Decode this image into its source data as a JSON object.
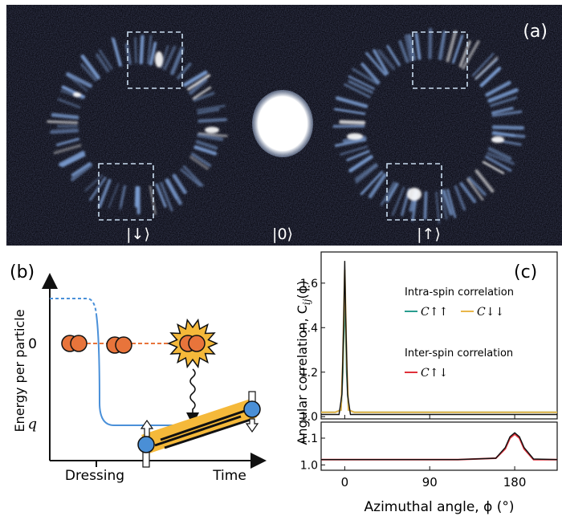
{
  "panel_a": {
    "tag": "(a)",
    "ket_down": "|↓⟩",
    "ket_zero": "|0⟩",
    "ket_up": "|↑⟩"
  },
  "panel_b": {
    "tag": "(b)",
    "ylabel": "Energy per particle",
    "y_tick_zero": "0",
    "y_tick_q": "q",
    "x_tick_dressing": "Dressing",
    "x_tick_time": "Time",
    "colors": {
      "curve": "#4a90d9",
      "particle": "#e8743b",
      "tube": "#f5b93a",
      "atom_blue": "#4a8fd6"
    }
  },
  "panel_c": {
    "tag": "(c)",
    "ylabel": "Angular correlation, C",
    "ylabel_sub": "ij",
    "ylabel_tail": "(ϕ)",
    "xlabel": "Azimuthal angle, ϕ (°)",
    "legend_intra_title": "Intra-spin correlation",
    "legend_inter_title": "Inter-spin correlation",
    "legend_uu": "C↑↑",
    "legend_dd": "C↓↓",
    "legend_ud": "C↑↓",
    "colors": {
      "uu": "#2a9d8f",
      "dd": "#e9b64a",
      "ud": "#e0303a",
      "fit": "#111111"
    }
  },
  "chart_data": [
    {
      "type": "line",
      "title": "",
      "xlabel": "Azimuthal angle, ϕ (°)",
      "ylabel": "Angular correlation, C_ij(ϕ)",
      "xlim": [
        -25,
        225
      ],
      "ylim": [
        0.99,
        1.74
      ],
      "yticks": [
        1.0,
        1.2,
        1.4,
        1.6
      ],
      "xticks": [
        0,
        90,
        180
      ],
      "series": [
        {
          "name": "C↑↑",
          "x": [
            -25,
            -10,
            -4,
            -2,
            0,
            2,
            4,
            10,
            60,
            120,
            180,
            225
          ],
          "y": [
            1.02,
            1.02,
            1.03,
            1.2,
            1.56,
            1.2,
            1.03,
            1.02,
            1.02,
            1.02,
            1.02,
            1.02
          ]
        },
        {
          "name": "C↓↓",
          "x": [
            -25,
            -10,
            -4,
            -2,
            0,
            2,
            4,
            10,
            60,
            120,
            180,
            225
          ],
          "y": [
            1.02,
            1.02,
            1.03,
            1.25,
            1.66,
            1.25,
            1.03,
            1.02,
            1.02,
            1.02,
            1.02,
            1.02
          ]
        },
        {
          "name": "fit",
          "x": [
            -25,
            -6,
            -3,
            -1,
            0,
            1,
            3,
            6,
            225
          ],
          "y": [
            1.01,
            1.01,
            1.1,
            1.45,
            1.7,
            1.45,
            1.1,
            1.01,
            1.01
          ]
        }
      ]
    },
    {
      "type": "line",
      "title": "",
      "xlabel": "Azimuthal angle, ϕ (°)",
      "ylabel": "",
      "xlim": [
        -25,
        225
      ],
      "ylim": [
        0.98,
        1.16
      ],
      "yticks": [
        1.0,
        1.1
      ],
      "xticks": [
        0,
        90,
        180
      ],
      "series": [
        {
          "name": "C↑↓",
          "x": [
            -25,
            0,
            60,
            120,
            160,
            170,
            175,
            180,
            185,
            190,
            200,
            225
          ],
          "y": [
            1.02,
            1.02,
            1.02,
            1.02,
            1.025,
            1.06,
            1.1,
            1.115,
            1.1,
            1.06,
            1.02,
            1.02
          ]
        },
        {
          "name": "fit",
          "x": [
            -25,
            0,
            60,
            120,
            160,
            170,
            175,
            180,
            185,
            190,
            200,
            225
          ],
          "y": [
            1.02,
            1.02,
            1.02,
            1.02,
            1.025,
            1.065,
            1.105,
            1.12,
            1.105,
            1.065,
            1.022,
            1.02
          ]
        }
      ]
    }
  ]
}
